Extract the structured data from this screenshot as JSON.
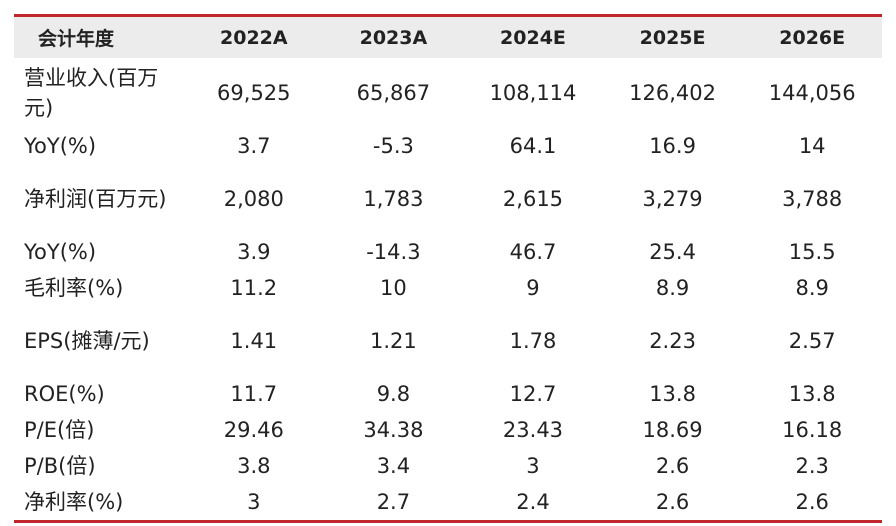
{
  "table": {
    "headers": [
      "会计年度",
      "2022A",
      "2023A",
      "2024E",
      "2025E",
      "2026E"
    ],
    "rows": [
      {
        "label": "营业收入(百万元)",
        "values": [
          "69,525",
          "65,867",
          "108,114",
          "126,402",
          "144,056"
        ]
      },
      {
        "label": "YoY(%)",
        "values": [
          "3.7",
          "-5.3",
          "64.1",
          "16.9",
          "14"
        ]
      },
      {
        "label": "净利润(百万元)",
        "values": [
          "2,080",
          "1,783",
          "2,615",
          "3,279",
          "3,788"
        ]
      },
      {
        "label": "YoY(%)",
        "values": [
          "3.9",
          "-14.3",
          "46.7",
          "25.4",
          "15.5"
        ]
      },
      {
        "label": "毛利率(%)",
        "values": [
          "11.2",
          "10",
          "9",
          "8.9",
          "8.9"
        ]
      },
      {
        "label": "EPS(摊薄/元)",
        "values": [
          "1.41",
          "1.21",
          "1.78",
          "2.23",
          "2.57"
        ]
      },
      {
        "label": "ROE(%)",
        "values": [
          "11.7",
          "9.8",
          "12.7",
          "13.8",
          "13.8"
        ]
      },
      {
        "label": "P/E(倍)",
        "values": [
          "29.46",
          "34.38",
          "23.43",
          "18.69",
          "16.18"
        ]
      },
      {
        "label": "P/B(倍)",
        "values": [
          "3.8",
          "3.4",
          "3",
          "2.6",
          "2.3"
        ]
      },
      {
        "label": "净利率(%)",
        "values": [
          "3",
          "2.7",
          "2.4",
          "2.6",
          "2.6"
        ]
      }
    ]
  },
  "colors": {
    "rule": "#c0272d",
    "header_bg": "#ececec",
    "text": "#222222"
  }
}
